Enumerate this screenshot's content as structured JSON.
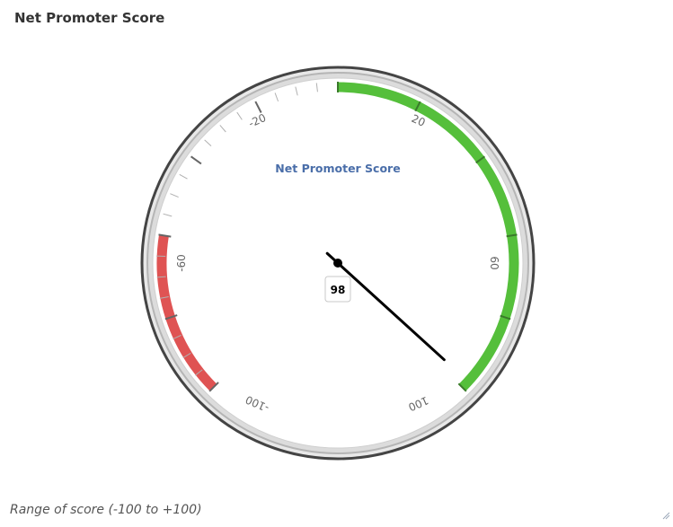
{
  "widget": {
    "title": "Net Promoter Score",
    "footer_note": "Range of score (-100 to +100)"
  },
  "gauge": {
    "title": "Net Promoter Score",
    "value_label": "98",
    "colors": {
      "positive_band": "#55bf3b",
      "negative_band": "#df5353",
      "needle": "#000000",
      "title": "#4a6ea9"
    }
  },
  "chart_data": {
    "type": "gauge",
    "title": "Net Promoter Score",
    "value": 98,
    "range": [
      -100,
      100
    ],
    "tick_labels": [
      "-20",
      "20",
      "60",
      "-60",
      "100",
      "-100"
    ],
    "bands": [
      {
        "from": 0,
        "to": 100,
        "color": "#55bf3b"
      },
      {
        "from": -100,
        "to": -60,
        "color": "#df5353"
      }
    ]
  }
}
